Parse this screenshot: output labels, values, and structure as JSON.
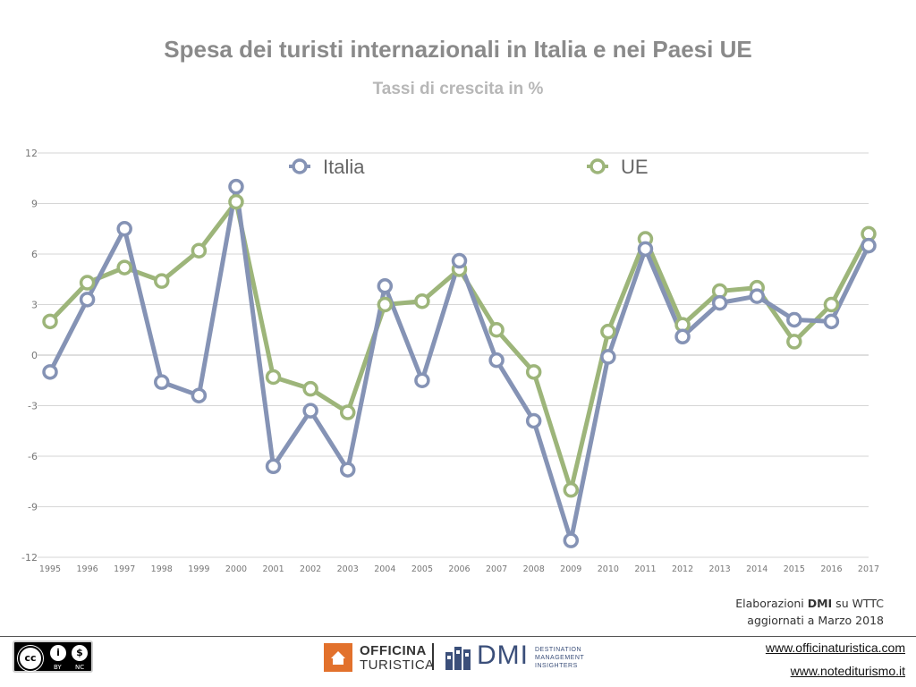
{
  "slide": {
    "title": "Spesa dei turisti internazionali in Italia e nei Paesi UE",
    "subtitle": "Tassi di crescita in %"
  },
  "chart_data": {
    "type": "line",
    "title": "Spesa dei turisti internazionali in Italia e nei Paesi UE",
    "subtitle": "Tassi di crescita in %",
    "xlabel": "",
    "ylabel": "",
    "x": [
      "1995",
      "1996",
      "1997",
      "1998",
      "1999",
      "2000",
      "2001",
      "2002",
      "2003",
      "2004",
      "2005",
      "2006",
      "2007",
      "2008",
      "2009",
      "2010",
      "2011",
      "2012",
      "2013",
      "2014",
      "2015",
      "2016",
      "2017"
    ],
    "ylim": [
      -12,
      12
    ],
    "yticks": [
      12,
      9,
      6,
      3,
      0,
      -3,
      -6,
      -9,
      -12
    ],
    "grid": true,
    "legend_position": "top",
    "series": [
      {
        "name": "Italia",
        "color": "#8593b5",
        "values": [
          -1.0,
          3.3,
          7.5,
          -1.6,
          -2.4,
          10.0,
          -6.6,
          -3.3,
          -6.8,
          4.1,
          -1.5,
          5.6,
          -0.3,
          -3.9,
          -11.0,
          -0.1,
          6.3,
          1.1,
          3.1,
          3.5,
          2.1,
          2.0,
          6.5
        ]
      },
      {
        "name": "UE",
        "color": "#9db57a",
        "values": [
          2.0,
          4.3,
          5.2,
          4.4,
          6.2,
          9.1,
          -1.3,
          -2.0,
          -3.4,
          3.0,
          3.2,
          5.1,
          1.5,
          -1.0,
          -8.0,
          1.4,
          6.9,
          1.8,
          3.8,
          4.0,
          0.8,
          3.0,
          7.2
        ]
      }
    ]
  },
  "credit": {
    "line1_prefix": "Elaborazioni ",
    "line1_bold": "DMI",
    "line1_suffix": " su WTTC",
    "line2": "aggiornati a Marzo 2018"
  },
  "footer": {
    "cc_badge": {
      "main": "cc",
      "by": "BY",
      "nc": "NC"
    },
    "logo1": {
      "line1": "OFFICINA",
      "line2": "TURISTICA"
    },
    "logo2": {
      "name": "DMI",
      "tagline": [
        "DESTINATION",
        "MANAGEMENT",
        "INSIGHTERS"
      ]
    },
    "url1": "www.officinaturistica.com",
    "url2": "www.notediturismo.it"
  }
}
